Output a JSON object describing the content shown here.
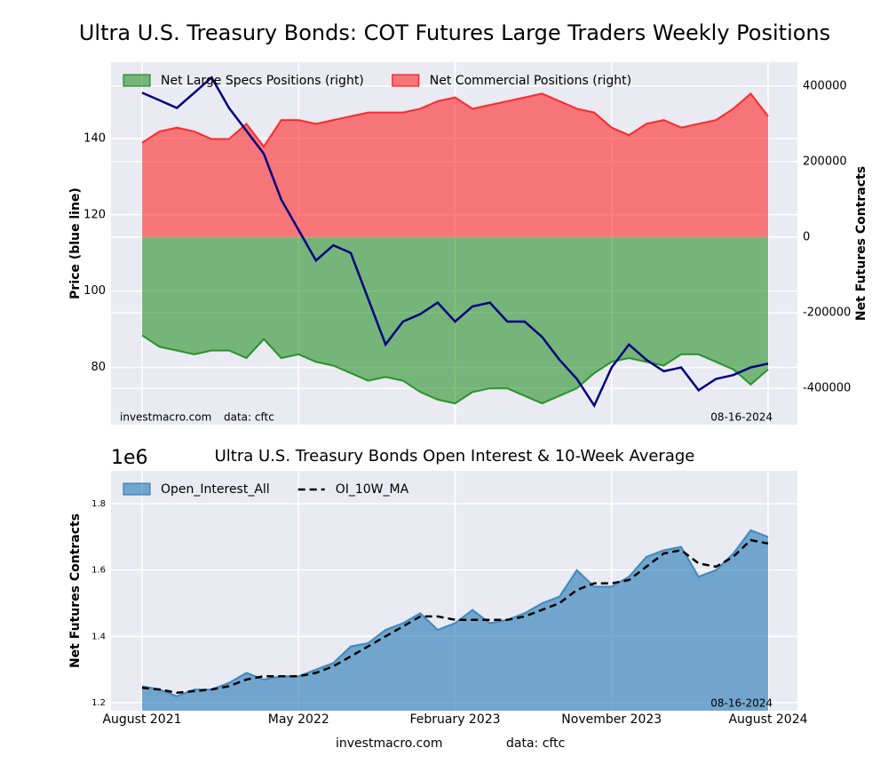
{
  "chart_data": [
    {
      "type": "line",
      "title": "Ultra U.S. Treasury Bonds: COT Futures Large Traders Weekly Positions",
      "ylabel": "Price (blue line)",
      "y2label": "Net Futures Contracts",
      "x": [
        "2021-08",
        "2021-09",
        "2021-10",
        "2021-11",
        "2021-12",
        "2022-01",
        "2022-02",
        "2022-03",
        "2022-04",
        "2022-05",
        "2022-06",
        "2022-07",
        "2022-08",
        "2022-09",
        "2022-10",
        "2022-11",
        "2022-12",
        "2023-01",
        "2023-02",
        "2023-03",
        "2023-04",
        "2023-05",
        "2023-06",
        "2023-07",
        "2023-08",
        "2023-09",
        "2023-10",
        "2023-11",
        "2023-12",
        "2024-01",
        "2024-02",
        "2024-03",
        "2024-04",
        "2024-05",
        "2024-06",
        "2024-07",
        "2024-08"
      ],
      "ylim": [
        65,
        160
      ],
      "yticks": [
        80,
        100,
        120,
        140
      ],
      "y2lim": [
        -496000,
        463000
      ],
      "y2ticks": [
        -400000,
        -200000,
        0,
        200000,
        400000
      ],
      "grid": true,
      "legend": "upper left",
      "series": [
        {
          "color": "#000080",
          "values": [
            152,
            150,
            148,
            152,
            156,
            148,
            142,
            136,
            124,
            116,
            108,
            112,
            110,
            98,
            86,
            92,
            94,
            97,
            92,
            96,
            97,
            92,
            92,
            88,
            82,
            77,
            70,
            80,
            86,
            82,
            79,
            80,
            74,
            77,
            78,
            80,
            81
          ]
        },
        {
          "name": "Net Large Specs Positions (right)",
          "color": "#008000",
          "axis": "y2",
          "fill": true,
          "values": [
            -260000,
            -290000,
            -300000,
            -310000,
            -300000,
            -300000,
            -320000,
            -270000,
            -320000,
            -310000,
            -330000,
            -340000,
            -360000,
            -380000,
            -370000,
            -380000,
            -410000,
            -430000,
            -440000,
            -410000,
            -400000,
            -400000,
            -420000,
            -440000,
            -420000,
            -400000,
            -360000,
            -330000,
            -320000,
            -330000,
            -340000,
            -310000,
            -310000,
            -330000,
            -350000,
            -390000,
            -350000
          ]
        },
        {
          "name": "Net Commercial Positions (right)",
          "color": "#ff0000",
          "axis": "y2",
          "fill": true,
          "values": [
            250000,
            280000,
            290000,
            280000,
            260000,
            260000,
            300000,
            240000,
            310000,
            310000,
            300000,
            310000,
            320000,
            330000,
            330000,
            330000,
            340000,
            360000,
            370000,
            340000,
            350000,
            360000,
            370000,
            380000,
            360000,
            340000,
            330000,
            290000,
            270000,
            300000,
            310000,
            290000,
            300000,
            310000,
            340000,
            380000,
            320000
          ]
        }
      ],
      "annotations": [
        "investmacro.com",
        "data: cftc",
        "08-16-2024"
      ]
    },
    {
      "type": "line",
      "title": "Ultra U.S. Treasury Bonds Open Interest & 10-Week Average",
      "ylabel": "Net Futures Contracts",
      "y_offset": "1e6",
      "x": [
        "2021-08",
        "2021-09",
        "2021-10",
        "2021-11",
        "2021-12",
        "2022-01",
        "2022-02",
        "2022-03",
        "2022-04",
        "2022-05",
        "2022-06",
        "2022-07",
        "2022-08",
        "2022-09",
        "2022-10",
        "2022-11",
        "2022-12",
        "2023-01",
        "2023-02",
        "2023-03",
        "2023-04",
        "2023-05",
        "2023-06",
        "2023-07",
        "2023-08",
        "2023-09",
        "2023-10",
        "2023-11",
        "2023-12",
        "2024-01",
        "2024-02",
        "2024-03",
        "2024-04",
        "2024-05",
        "2024-06",
        "2024-07",
        "2024-08"
      ],
      "xticks": [
        {
          "value": "2021-08",
          "label": "August 2021"
        },
        {
          "value": "2022-05",
          "label": "May 2022"
        },
        {
          "value": "2023-02",
          "label": "February 2023"
        },
        {
          "value": "2023-11",
          "label": "November 2023"
        },
        {
          "value": "2024-08",
          "label": "August 2024"
        }
      ],
      "ylim": [
        1.176,
        1.899
      ],
      "yticks": [
        1.2,
        1.4,
        1.6,
        1.8
      ],
      "grid": true,
      "legend": "upper left",
      "series": [
        {
          "name": "Open_Interest_All",
          "color": "#1f77b4",
          "fill": true,
          "values": [
            1.25,
            1.24,
            1.22,
            1.24,
            1.24,
            1.26,
            1.29,
            1.27,
            1.28,
            1.28,
            1.3,
            1.32,
            1.37,
            1.38,
            1.42,
            1.44,
            1.47,
            1.42,
            1.44,
            1.48,
            1.44,
            1.45,
            1.47,
            1.5,
            1.52,
            1.6,
            1.55,
            1.55,
            1.58,
            1.64,
            1.66,
            1.67,
            1.58,
            1.6,
            1.65,
            1.72,
            1.7
          ]
        },
        {
          "name": "OI_10W_MA",
          "color": "#000000",
          "dash": true,
          "values": [
            1.245,
            1.24,
            1.23,
            1.235,
            1.24,
            1.25,
            1.27,
            1.28,
            1.28,
            1.28,
            1.29,
            1.31,
            1.34,
            1.37,
            1.4,
            1.43,
            1.46,
            1.46,
            1.45,
            1.45,
            1.45,
            1.45,
            1.46,
            1.48,
            1.5,
            1.54,
            1.56,
            1.56,
            1.57,
            1.61,
            1.65,
            1.66,
            1.62,
            1.61,
            1.64,
            1.69,
            1.68
          ]
        }
      ],
      "annotations": [
        "08-16-2024"
      ],
      "footer": [
        "investmacro.com",
        "data: cftc"
      ]
    }
  ]
}
